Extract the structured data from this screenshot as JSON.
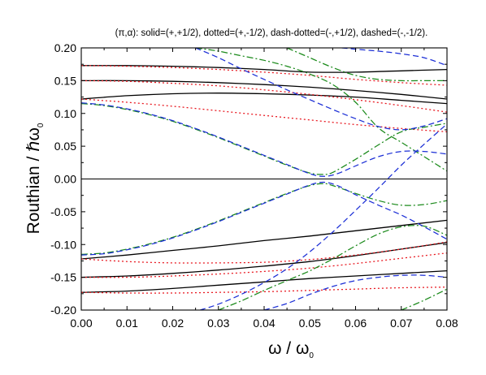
{
  "chart_data": {
    "type": "line",
    "title": "(π,α): solid=(+,+1/2), dotted=(+,-1/2), dash-dotted=(-,+1/2), dashed=(-,-1/2).",
    "xlabel_main": "ω / ω",
    "xlabel_sub": "0",
    "ylabel_main": "Routhian / ℏω",
    "ylabel_sub": "0",
    "xlim": [
      0.0,
      0.08
    ],
    "ylim": [
      -0.2,
      0.2
    ],
    "xticks": [
      0.0,
      0.01,
      0.02,
      0.03,
      0.04,
      0.05,
      0.06,
      0.07,
      0.08
    ],
    "xtick_labels": [
      "0.00",
      "0.01",
      "0.02",
      "0.03",
      "0.04",
      "0.05",
      "0.06",
      "0.07",
      "0.08"
    ],
    "yticks": [
      -0.2,
      -0.15,
      -0.1,
      -0.05,
      0.0,
      0.05,
      0.1,
      0.15,
      0.2
    ],
    "ytick_labels": [
      "-0.20",
      "-0.15",
      "-0.10",
      "-0.05",
      "0.00",
      "0.05",
      "0.10",
      "0.15",
      "0.20"
    ],
    "grid": false,
    "zero_line": true,
    "colors": {
      "solid": "#000000",
      "dotted": "#e8141c",
      "dash-dotted": "#1b8a1b",
      "dashed": "#1c2fd6"
    },
    "series": [
      {
        "style": "solid",
        "x": [
          0,
          0.01,
          0.02,
          0.03,
          0.04,
          0.05,
          0.06,
          0.07,
          0.08
        ],
        "y": [
          0.173,
          0.173,
          0.172,
          0.17,
          0.167,
          0.163,
          0.163,
          0.165,
          0.167
        ]
      },
      {
        "style": "solid",
        "x": [
          0,
          0.01,
          0.02,
          0.03,
          0.04,
          0.05,
          0.06,
          0.07,
          0.08
        ],
        "y": [
          0.15,
          0.15,
          0.149,
          0.147,
          0.144,
          0.14,
          0.135,
          0.129,
          0.122
        ]
      },
      {
        "style": "solid",
        "x": [
          0,
          0.01,
          0.02,
          0.03,
          0.04,
          0.05,
          0.06,
          0.07,
          0.08
        ],
        "y": [
          0.122,
          0.127,
          0.13,
          0.131,
          0.13,
          0.128,
          0.125,
          0.12,
          0.115
        ]
      },
      {
        "style": "solid",
        "x": [
          0,
          0.01,
          0.02,
          0.03,
          0.04,
          0.05,
          0.06,
          0.07,
          0.08
        ],
        "y": [
          -0.122,
          -0.116,
          -0.109,
          -0.102,
          -0.094,
          -0.087,
          -0.079,
          -0.071,
          -0.063
        ]
      },
      {
        "style": "solid",
        "x": [
          0,
          0.01,
          0.02,
          0.03,
          0.04,
          0.05,
          0.06,
          0.07,
          0.08
        ],
        "y": [
          -0.15,
          -0.148,
          -0.144,
          -0.139,
          -0.133,
          -0.126,
          -0.117,
          -0.107,
          -0.097
        ]
      },
      {
        "style": "solid",
        "x": [
          0,
          0.01,
          0.02,
          0.03,
          0.04,
          0.05,
          0.06,
          0.07,
          0.08
        ],
        "y": [
          -0.173,
          -0.171,
          -0.167,
          -0.162,
          -0.157,
          -0.152,
          -0.148,
          -0.144,
          -0.14
        ]
      },
      {
        "style": "dotted",
        "x": [
          0,
          0.01,
          0.02,
          0.03,
          0.04,
          0.05,
          0.06,
          0.07,
          0.08
        ],
        "y": [
          0.173,
          0.172,
          0.17,
          0.167,
          0.163,
          0.158,
          0.152,
          0.147,
          0.143
        ]
      },
      {
        "style": "dotted",
        "x": [
          0,
          0.01,
          0.02,
          0.03,
          0.04,
          0.05,
          0.06,
          0.07,
          0.08
        ],
        "y": [
          0.15,
          0.149,
          0.146,
          0.142,
          0.136,
          0.129,
          0.121,
          0.112,
          0.102
        ]
      },
      {
        "style": "dotted",
        "x": [
          0,
          0.01,
          0.02,
          0.03,
          0.04,
          0.05,
          0.06,
          0.07,
          0.08
        ],
        "y": [
          0.122,
          0.117,
          0.111,
          0.104,
          0.097,
          0.09,
          0.083,
          0.077,
          0.072
        ]
      },
      {
        "style": "dotted",
        "x": [
          0,
          0.01,
          0.02,
          0.03,
          0.04,
          0.05,
          0.06,
          0.07,
          0.08
        ],
        "y": [
          -0.122,
          -0.126,
          -0.128,
          -0.128,
          -0.127,
          -0.123,
          -0.116,
          -0.107,
          -0.096
        ]
      },
      {
        "style": "dotted",
        "x": [
          0,
          0.01,
          0.02,
          0.03,
          0.04,
          0.05,
          0.06,
          0.07,
          0.08
        ],
        "y": [
          -0.15,
          -0.15,
          -0.148,
          -0.145,
          -0.141,
          -0.136,
          -0.129,
          -0.121,
          -0.113
        ]
      },
      {
        "style": "dotted",
        "x": [
          0,
          0.01,
          0.02,
          0.03,
          0.04,
          0.05,
          0.06,
          0.07,
          0.08
        ],
        "y": [
          -0.173,
          -0.174,
          -0.174,
          -0.173,
          -0.172,
          -0.17,
          -0.168,
          -0.166,
          -0.165
        ]
      },
      {
        "style": "dash-dotted",
        "x": [
          0,
          0.005,
          0.01,
          0.015,
          0.02,
          0.025,
          0.03,
          0.035,
          0.04,
          0.045,
          0.05,
          0.053,
          0.055,
          0.06,
          0.065,
          0.07,
          0.075,
          0.08
        ],
        "y": [
          0.115,
          0.112,
          0.106,
          0.098,
          0.088,
          0.076,
          0.063,
          0.049,
          0.035,
          0.021,
          0.009,
          0.007,
          0.01,
          0.03,
          0.052,
          0.072,
          0.079,
          0.085
        ]
      },
      {
        "style": "dash-dotted",
        "x": [
          0,
          0.005,
          0.01,
          0.015,
          0.02,
          0.025,
          0.03,
          0.035,
          0.04,
          0.045,
          0.05,
          0.053,
          0.055,
          0.06,
          0.065,
          0.07,
          0.075,
          0.08
        ],
        "y": [
          -0.115,
          -0.113,
          -0.107,
          -0.099,
          -0.089,
          -0.077,
          -0.064,
          -0.05,
          -0.036,
          -0.022,
          -0.01,
          -0.007,
          -0.01,
          -0.022,
          -0.033,
          -0.04,
          -0.039,
          -0.033
        ]
      },
      {
        "style": "dash-dotted",
        "x": [
          0.025,
          0.03,
          0.035,
          0.04,
          0.045,
          0.05,
          0.055,
          0.06,
          0.065,
          0.07,
          0.075,
          0.08
        ],
        "y": [
          0.2,
          0.195,
          0.188,
          0.181,
          0.172,
          0.16,
          0.144,
          0.117,
          0.078,
          0.056,
          0.034,
          0.012
        ]
      },
      {
        "style": "dash-dotted",
        "x": [
          0.045,
          0.05,
          0.055,
          0.06,
          0.065,
          0.07,
          0.075,
          0.08
        ],
        "y": [
          0.2,
          0.185,
          0.17,
          0.158,
          0.152,
          0.15,
          0.15,
          0.15
        ]
      },
      {
        "style": "dash-dotted",
        "x": [
          0.03,
          0.035,
          0.04,
          0.045,
          0.05,
          0.055,
          0.06,
          0.065,
          0.07,
          0.075,
          0.08
        ],
        "y": [
          -0.2,
          -0.186,
          -0.17,
          -0.155,
          -0.14,
          -0.122,
          -0.102,
          -0.084,
          -0.073,
          -0.072,
          -0.086
        ]
      },
      {
        "style": "dash-dotted",
        "x": [
          0.07,
          0.075,
          0.08
        ],
        "y": [
          -0.2,
          -0.185,
          -0.168
        ]
      },
      {
        "style": "dashed",
        "x": [
          0,
          0.005,
          0.01,
          0.015,
          0.02,
          0.025,
          0.03,
          0.035,
          0.04,
          0.045,
          0.05,
          0.053,
          0.056,
          0.06,
          0.065,
          0.07,
          0.075,
          0.08
        ],
        "y": [
          0.116,
          0.113,
          0.107,
          0.099,
          0.089,
          0.077,
          0.064,
          0.05,
          0.036,
          0.022,
          0.008,
          0.004,
          0.008,
          0.02,
          0.034,
          0.042,
          0.042,
          0.038
        ]
      },
      {
        "style": "dashed",
        "x": [
          0,
          0.005,
          0.01,
          0.015,
          0.02,
          0.025,
          0.03,
          0.035,
          0.04,
          0.045,
          0.05,
          0.053,
          0.056,
          0.06,
          0.065,
          0.07,
          0.075,
          0.08
        ],
        "y": [
          -0.116,
          -0.114,
          -0.108,
          -0.1,
          -0.09,
          -0.078,
          -0.065,
          -0.051,
          -0.037,
          -0.023,
          -0.009,
          -0.005,
          -0.01,
          -0.024,
          -0.04,
          -0.055,
          -0.073,
          -0.092
        ]
      },
      {
        "style": "dashed",
        "x": [
          0.025,
          0.03,
          0.035,
          0.04,
          0.045,
          0.05,
          0.055,
          0.06,
          0.065,
          0.07,
          0.075,
          0.08
        ],
        "y": [
          0.2,
          0.185,
          0.168,
          0.152,
          0.136,
          0.121,
          0.106,
          0.092,
          0.08,
          0.075,
          0.081,
          0.092
        ]
      },
      {
        "style": "dashed",
        "x": [
          0.057,
          0.06,
          0.065,
          0.07,
          0.075,
          0.08
        ],
        "y": [
          0.2,
          0.198,
          0.195,
          0.191,
          0.185,
          0.173
        ]
      },
      {
        "style": "dashed",
        "x": [
          0.026,
          0.03,
          0.035,
          0.04,
          0.045,
          0.05,
          0.055,
          0.06,
          0.065,
          0.07,
          0.075,
          0.08
        ],
        "y": [
          -0.2,
          -0.191,
          -0.176,
          -0.158,
          -0.137,
          -0.111,
          -0.081,
          -0.048,
          -0.014,
          0.021,
          0.053,
          0.084
        ]
      },
      {
        "style": "dashed",
        "x": [
          0.04,
          0.045,
          0.05,
          0.055,
          0.06,
          0.065,
          0.07,
          0.075,
          0.08
        ],
        "y": [
          -0.2,
          -0.19,
          -0.176,
          -0.164,
          -0.155,
          -0.15,
          -0.147,
          -0.147,
          -0.15
        ]
      }
    ]
  }
}
